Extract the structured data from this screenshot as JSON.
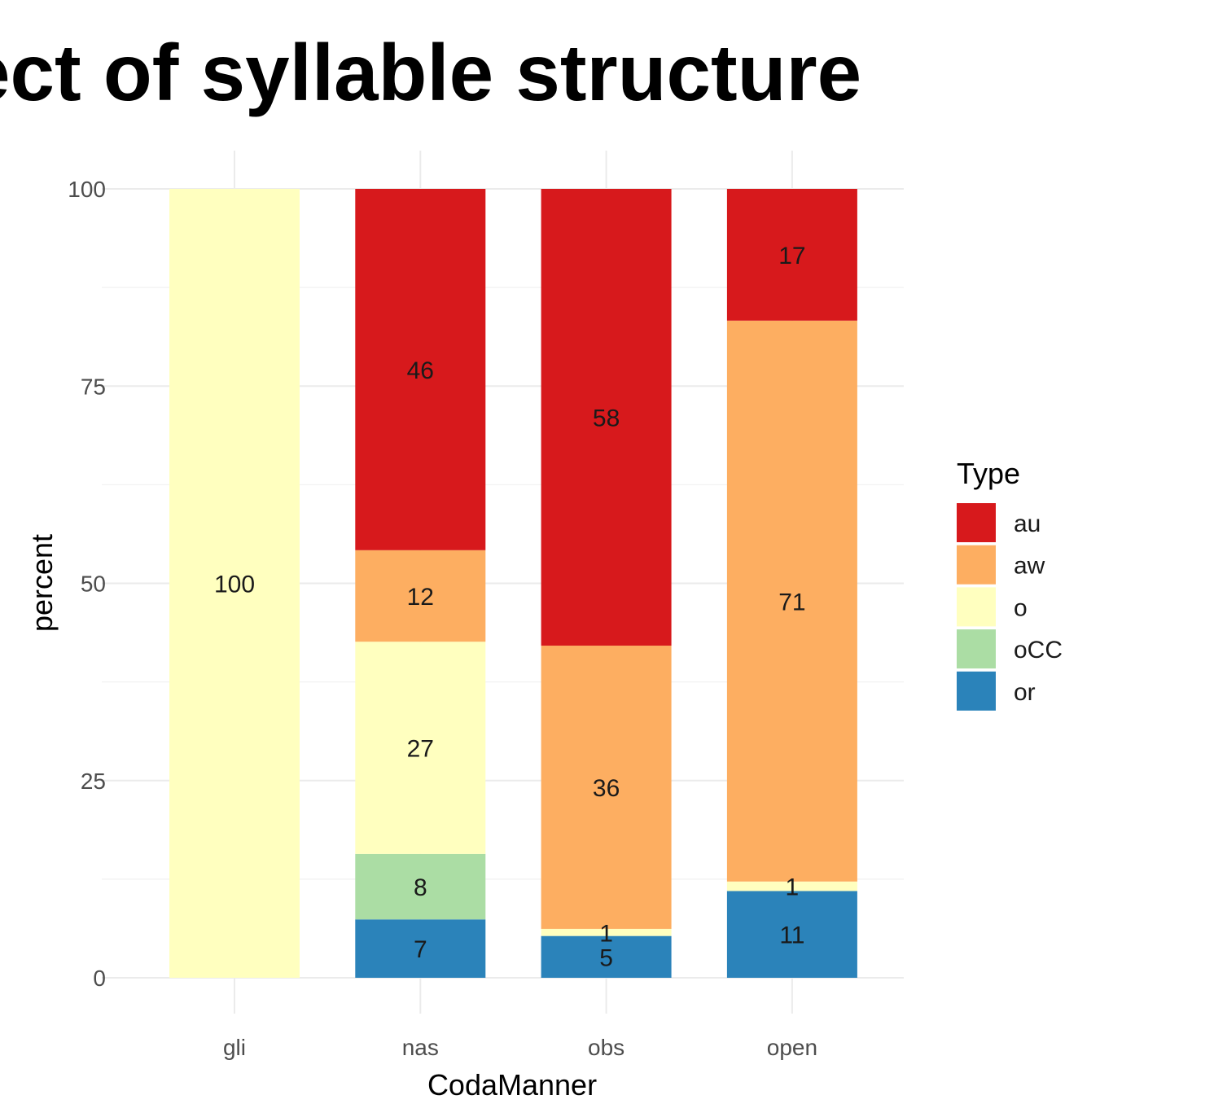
{
  "chart_data": {
    "type": "bar",
    "stacked": true,
    "title": "ect of syllable structure",
    "xlabel": "CodaManner",
    "ylabel": "percent",
    "ylim": [
      0,
      100
    ],
    "yticks": [
      "0",
      "25",
      "50",
      "75",
      "100"
    ],
    "categories": [
      "gli",
      "nas",
      "obs",
      "open"
    ],
    "legend": {
      "title": "Type",
      "placement": "right"
    },
    "series": [
      {
        "name": "or",
        "color": "#2b83ba",
        "values": [
          0,
          7.4,
          5.3,
          11.0
        ],
        "labels": [
          "",
          "7",
          "5",
          "11"
        ]
      },
      {
        "name": "oCC",
        "color": "#abdda4",
        "values": [
          0,
          8.3,
          0,
          0
        ],
        "labels": [
          "",
          "8",
          "",
          ""
        ]
      },
      {
        "name": "o",
        "color": "#ffffbf",
        "values": [
          100,
          26.9,
          0.9,
          1.2
        ],
        "labels": [
          "100",
          "27",
          "1",
          "1"
        ]
      },
      {
        "name": "aw",
        "color": "#fdae61",
        "values": [
          0,
          11.6,
          35.9,
          71.1
        ],
        "labels": [
          "",
          "12",
          "36",
          "71"
        ]
      },
      {
        "name": "au",
        "color": "#d7191c",
        "values": [
          0,
          45.8,
          57.9,
          16.7
        ],
        "labels": [
          "",
          "46",
          "58",
          "17"
        ]
      }
    ],
    "legend_order": [
      "au",
      "aw",
      "o",
      "oCC",
      "or"
    ],
    "grid": true
  }
}
